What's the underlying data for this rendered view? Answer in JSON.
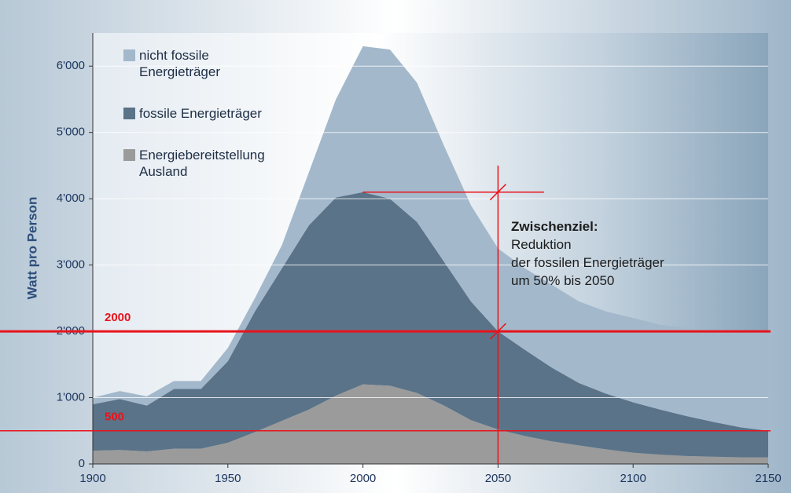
{
  "chart_data": {
    "type": "stacked_area",
    "y_axis_label": "Watt pro Person",
    "x": [
      1900,
      1910,
      1920,
      1930,
      1940,
      1950,
      1960,
      1970,
      1980,
      1990,
      2000,
      2010,
      2020,
      2030,
      2040,
      2050,
      2060,
      2070,
      2080,
      2090,
      2100,
      2110,
      2120,
      2130,
      2140,
      2150
    ],
    "series": [
      {
        "name": "nicht fossile Energieträger",
        "color": "#a3b8cb",
        "values": [
          100,
          120,
          140,
          120,
          120,
          200,
          200,
          350,
          800,
          1480,
          2200,
          2250,
          2100,
          1750,
          1450,
          1250,
          1230,
          1250,
          1230,
          1240,
          1270,
          1280,
          1330,
          1370,
          1450,
          1500
        ]
      },
      {
        "name": "fossile Energieträger",
        "color": "#5a7388",
        "values": [
          700,
          770,
          690,
          900,
          900,
          1230,
          1820,
          2300,
          2780,
          2990,
          2900,
          2820,
          2580,
          2170,
          1790,
          1480,
          1300,
          1110,
          940,
          840,
          760,
          680,
          600,
          520,
          450,
          400
        ]
      },
      {
        "name": "Energiebereitstellung Ausland",
        "color": "#9b9b9b",
        "values": [
          200,
          210,
          190,
          230,
          230,
          320,
          480,
          650,
          820,
          1030,
          1200,
          1180,
          1070,
          880,
          660,
          520,
          420,
          340,
          280,
          220,
          170,
          140,
          120,
          110,
          100,
          100
        ]
      }
    ],
    "xlim": [
      1900,
      2150
    ],
    "xticks": [
      1900,
      1950,
      2000,
      2050,
      2100,
      2150
    ],
    "ylim": [
      0,
      6500
    ],
    "yticks": [
      0,
      {
        "value": 1000,
        "label": "1'000"
      },
      {
        "value": 2000,
        "label": "2'000"
      },
      {
        "value": 3000,
        "label": "3'000"
      },
      {
        "value": 4000,
        "label": "4'000"
      },
      {
        "value": 5000,
        "label": "5'000"
      },
      {
        "value": 6000,
        "label": "6'000"
      }
    ],
    "grid": true,
    "reference_lines": [
      2000,
      500
    ],
    "target_line": {
      "x": 2050,
      "y_from": 0,
      "y_to": 4500
    },
    "peak_line": {
      "y": 4100,
      "x_from": 2000,
      "x_to": 2067
    },
    "annotation": [
      "Zwischenziel:",
      "Reduktion",
      "der fossilen Energieträger",
      "um 50% bis 2050"
    ]
  }
}
